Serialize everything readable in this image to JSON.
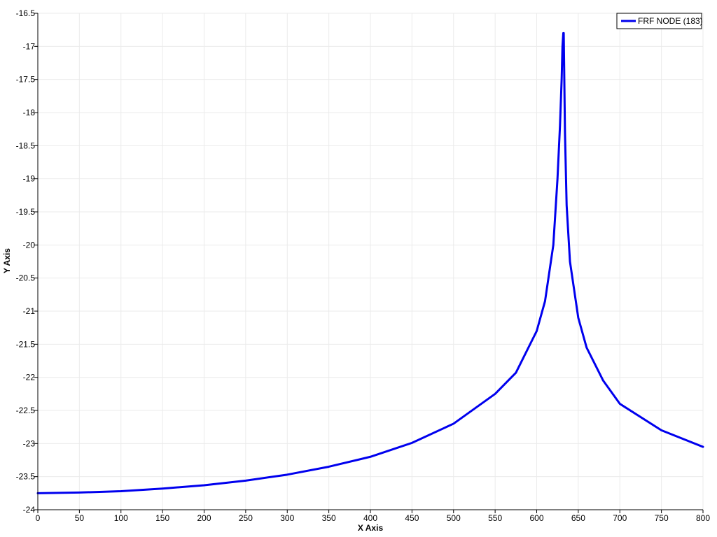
{
  "colors": {
    "background": "#ffffff",
    "series": "#0000ee",
    "grid": "#ebebeb",
    "axis": "#000000"
  },
  "chart_data": {
    "type": "line",
    "title": "",
    "xlabel": "X Axis",
    "ylabel": "Y Axis",
    "xlim": [
      0,
      800
    ],
    "ylim": [
      -24,
      -16.5
    ],
    "grid": true,
    "legend_position": "top-right",
    "xticks": [
      0,
      50,
      100,
      150,
      200,
      250,
      300,
      350,
      400,
      450,
      500,
      550,
      600,
      650,
      700,
      750,
      800
    ],
    "yticks": [
      -24,
      -23.5,
      -23,
      -22.5,
      -22,
      -21.5,
      -21,
      -20.5,
      -20,
      -19.5,
      -19,
      -18.5,
      -18,
      -17.5,
      -17,
      -16.5
    ],
    "xtick_labels": [
      "0",
      "50",
      "100",
      "150",
      "200",
      "250",
      "300",
      "350",
      "400",
      "450",
      "500",
      "550",
      "600",
      "650",
      "700",
      "750",
      "800"
    ],
    "ytick_labels": [
      "-24",
      "-23.5",
      "-23",
      "-22.5",
      "-22",
      "-21.5",
      "-21",
      "-20.5",
      "-20",
      "-19.5",
      "-19",
      "-18.5",
      "-18",
      "-17.5",
      "-17",
      "-16.5"
    ],
    "series": [
      {
        "name": "FRF NODE (183)",
        "x": [
          0,
          50,
          100,
          150,
          200,
          250,
          300,
          350,
          400,
          450,
          500,
          550,
          575,
          600,
          610,
          620,
          625,
          628,
          630,
          631,
          632,
          632.5,
          633,
          634,
          636,
          640,
          650,
          660,
          680,
          700,
          750,
          800
        ],
        "values": [
          -23.75,
          -23.74,
          -23.72,
          -23.68,
          -23.63,
          -23.56,
          -23.47,
          -23.35,
          -23.2,
          -22.99,
          -22.7,
          -22.25,
          -21.93,
          -21.3,
          -20.85,
          -20.0,
          -19.0,
          -18.2,
          -17.5,
          -17.0,
          -16.8,
          -16.8,
          -17.3,
          -18.3,
          -19.4,
          -20.25,
          -21.1,
          -21.55,
          -22.05,
          -22.4,
          -22.8,
          -23.05
        ]
      }
    ]
  }
}
